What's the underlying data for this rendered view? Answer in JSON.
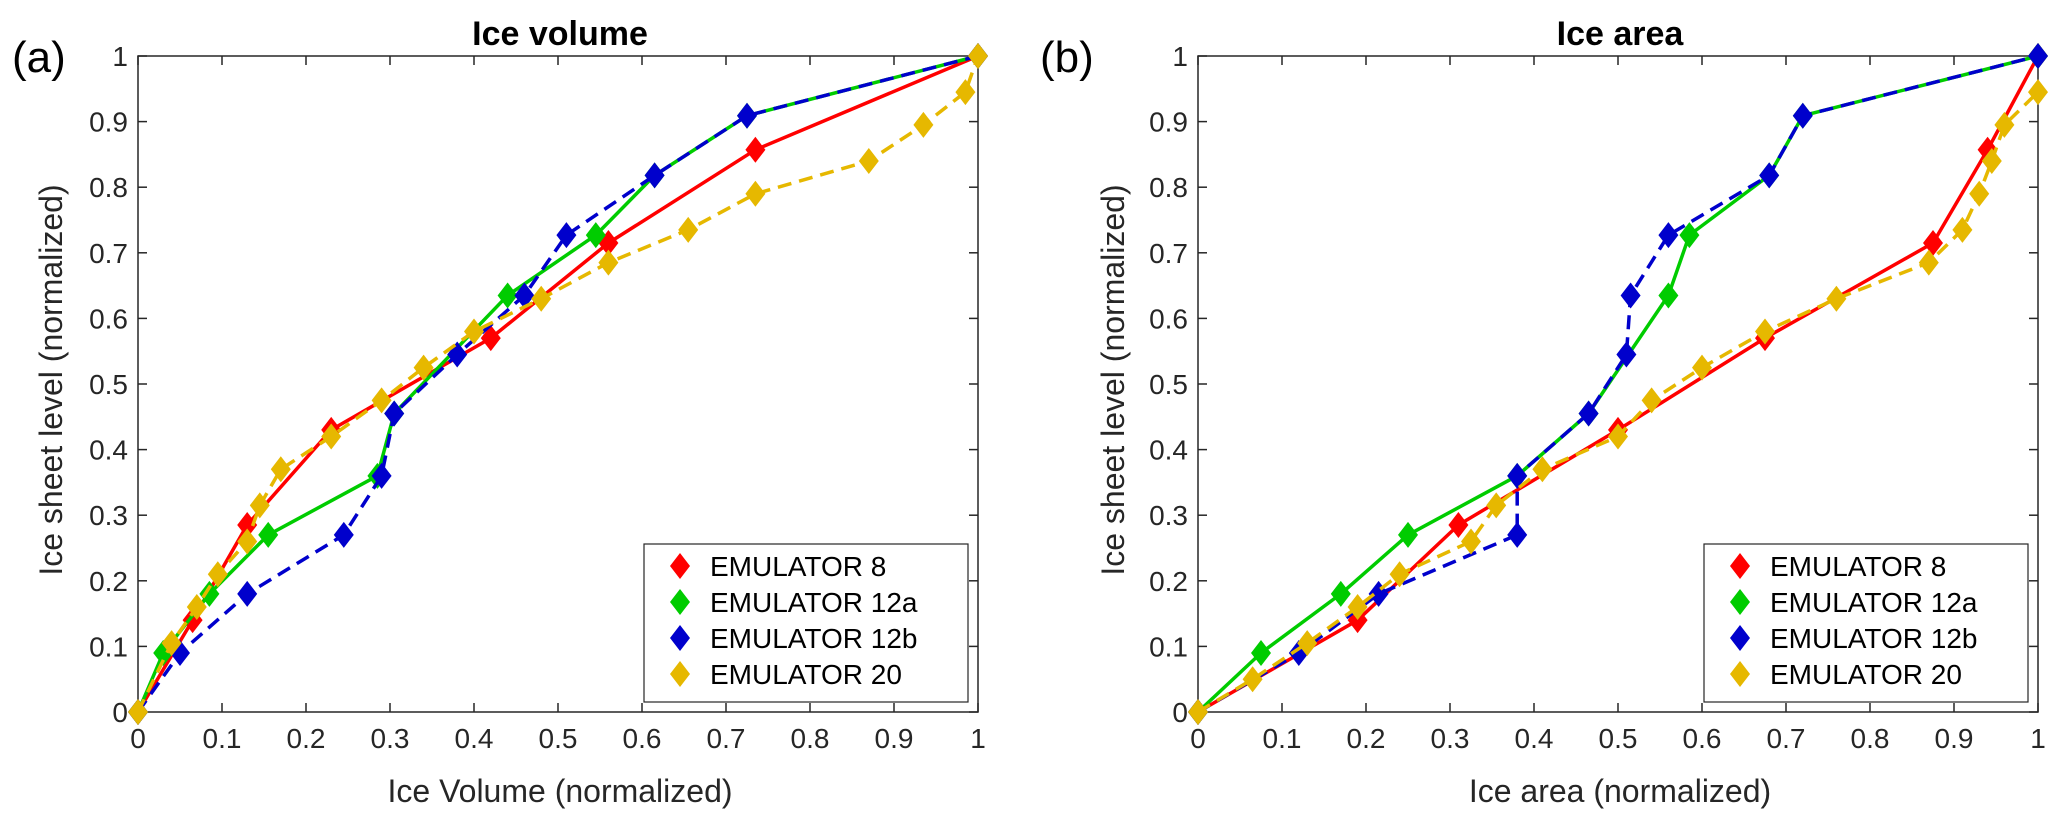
{
  "chart_data": [
    {
      "type": "line",
      "panel_label": "(a)",
      "title": "Ice volume",
      "xlabel": "Ice Volume (normalized)",
      "ylabel": "Ice sheet level (normalized)",
      "xlim": [
        0,
        1
      ],
      "ylim": [
        0,
        1
      ],
      "xticks": [
        "0",
        "0.1",
        "0.2",
        "0.3",
        "0.4",
        "0.5",
        "0.6",
        "0.7",
        "0.8",
        "0.9",
        "1"
      ],
      "yticks": [
        "0",
        "0.1",
        "0.2",
        "0.3",
        "0.4",
        "0.5",
        "0.6",
        "0.7",
        "0.8",
        "0.9",
        "1"
      ],
      "grid": false,
      "legend_position": "bottom-right",
      "series": [
        {
          "name": "EMULATOR 8",
          "color": "#ff0000",
          "dashed": false,
          "x": [
            0,
            0.065,
            0.13,
            0.23,
            0.42,
            0.56,
            0.735,
            1
          ],
          "y": [
            0,
            0.14,
            0.285,
            0.43,
            0.57,
            0.715,
            0.857,
            1
          ]
        },
        {
          "name": "EMULATOR 12a",
          "color": "#00cc00",
          "dashed": false,
          "x": [
            0,
            0.03,
            0.085,
            0.155,
            0.285,
            0.305,
            0.44,
            0.545,
            0.615,
            0.725,
            1
          ],
          "y": [
            0,
            0.09,
            0.18,
            0.27,
            0.36,
            0.455,
            0.635,
            0.727,
            0.818,
            0.909,
            1
          ]
        },
        {
          "name": "EMULATOR 12b",
          "color": "#0000cc",
          "dashed": true,
          "x": [
            0,
            0.05,
            0.13,
            0.245,
            0.29,
            0.305,
            0.38,
            0.46,
            0.51,
            0.615,
            0.725,
            1
          ],
          "y": [
            0,
            0.09,
            0.18,
            0.27,
            0.36,
            0.455,
            0.545,
            0.635,
            0.727,
            0.818,
            0.909,
            1
          ]
        },
        {
          "name": "EMULATOR 20",
          "color": "#e6b800",
          "dashed": true,
          "x": [
            0,
            0.04,
            0.07,
            0.095,
            0.13,
            0.145,
            0.17,
            0.23,
            0.29,
            0.34,
            0.4,
            0.48,
            0.56,
            0.655,
            0.735,
            0.87,
            0.935,
            0.985,
            1
          ],
          "y": [
            0,
            0.105,
            0.16,
            0.21,
            0.26,
            0.315,
            0.37,
            0.42,
            0.475,
            0.525,
            0.58,
            0.63,
            0.685,
            0.735,
            0.79,
            0.84,
            0.895,
            0.945,
            1
          ]
        }
      ]
    },
    {
      "type": "line",
      "panel_label": "(b)",
      "title": "Ice area",
      "xlabel": "Ice area (normalized)",
      "ylabel": "Ice sheet level (normalized)",
      "xlim": [
        0,
        1
      ],
      "ylim": [
        0,
        1
      ],
      "xticks": [
        "0",
        "0.1",
        "0.2",
        "0.3",
        "0.4",
        "0.5",
        "0.6",
        "0.7",
        "0.8",
        "0.9",
        "1"
      ],
      "yticks": [
        "0",
        "0.1",
        "0.2",
        "0.3",
        "0.4",
        "0.5",
        "0.6",
        "0.7",
        "0.8",
        "0.9",
        "1"
      ],
      "grid": false,
      "legend_position": "bottom-right",
      "series": [
        {
          "name": "EMULATOR 8",
          "color": "#ff0000",
          "dashed": false,
          "x": [
            0,
            0.19,
            0.31,
            0.5,
            0.675,
            0.875,
            0.94,
            1
          ],
          "y": [
            0,
            0.14,
            0.285,
            0.43,
            0.57,
            0.715,
            0.857,
            1
          ]
        },
        {
          "name": "EMULATOR 12a",
          "color": "#00cc00",
          "dashed": false,
          "x": [
            0,
            0.075,
            0.17,
            0.25,
            0.38,
            0.465,
            0.56,
            0.585,
            0.68,
            0.72,
            1
          ],
          "y": [
            0,
            0.09,
            0.18,
            0.27,
            0.36,
            0.455,
            0.635,
            0.727,
            0.818,
            0.909,
            1
          ]
        },
        {
          "name": "EMULATOR 12b",
          "color": "#0000cc",
          "dashed": true,
          "x": [
            0,
            0.12,
            0.215,
            0.38,
            0.38,
            0.465,
            0.51,
            0.515,
            0.56,
            0.68,
            0.72,
            1
          ],
          "y": [
            0,
            0.09,
            0.18,
            0.27,
            0.36,
            0.455,
            0.545,
            0.635,
            0.727,
            0.818,
            0.909,
            1
          ]
        },
        {
          "name": "EMULATOR 20",
          "color": "#e6b800",
          "dashed": true,
          "x": [
            0,
            0.065,
            0.13,
            0.19,
            0.24,
            0.325,
            0.355,
            0.41,
            0.5,
            0.54,
            0.6,
            0.675,
            0.76,
            0.87,
            0.91,
            0.93,
            0.945,
            0.96,
            1
          ],
          "y": [
            0,
            0.05,
            0.105,
            0.16,
            0.21,
            0.26,
            0.315,
            0.37,
            0.42,
            0.475,
            0.525,
            0.58,
            0.63,
            0.685,
            0.735,
            0.79,
            0.84,
            0.895,
            0.945
          ]
        }
      ]
    }
  ]
}
